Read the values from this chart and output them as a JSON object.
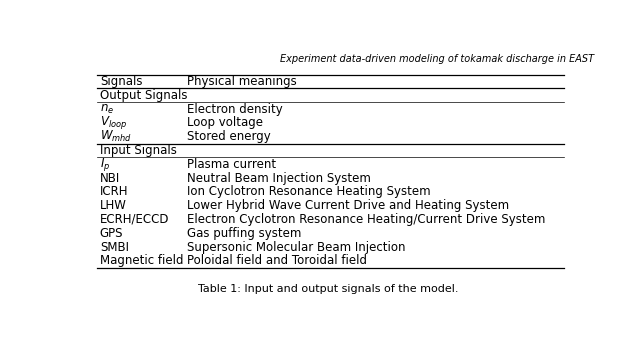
{
  "title": "Experiment data-driven modeling of tokamak discharge in EAST",
  "caption": "Table 1: Input and output signals of the model.",
  "col1_header": "Signals",
  "col2_header": "Physical meanings",
  "output_section": "Output Signals",
  "input_section": "Input Signals",
  "output_rows": [
    [
      "$n_e$",
      "Electron density"
    ],
    [
      "$V_{loop}$",
      "Loop voltage"
    ],
    [
      "$W_{mhd}$",
      "Stored energy"
    ]
  ],
  "input_rows": [
    [
      "$I_p$",
      "Plasma current"
    ],
    [
      "NBI",
      "Neutral Beam Injection System"
    ],
    [
      "ICRH",
      "Ion Cyclotron Resonance Heating System"
    ],
    [
      "LHW",
      "Lower Hybrid Wave Current Drive and Heating System"
    ],
    [
      "ECRH/ECCD",
      "Electron Cyclotron Resonance Heating/Current Drive System"
    ],
    [
      "GPS",
      "Gas puffing system"
    ],
    [
      "SMBI",
      "Supersonic Molecular Beam Injection"
    ],
    [
      "Magnetic field",
      "Poloidal field and Toroidal field"
    ]
  ],
  "bg_color": "#ffffff",
  "text_color": "#000000",
  "font_size": 8.5,
  "title_font_size": 7.0,
  "caption_font_size": 8.0
}
